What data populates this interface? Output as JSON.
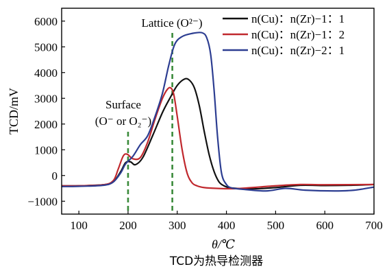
{
  "chart_data": {
    "type": "line",
    "xlabel": "θ/℃",
    "ylabel": "TCD/mV",
    "caption": "TCD为热导检测器",
    "xlim": [
      65,
      700
    ],
    "ylim": [
      -1500,
      6500
    ],
    "x_ticks": [
      "100",
      "200",
      "300",
      "400",
      "500",
      "600",
      "700"
    ],
    "y_ticks": [
      "−1000",
      "0",
      "1000",
      "2000",
      "3000",
      "4000",
      "5000",
      "6000"
    ],
    "x_tick_values": [
      100,
      200,
      300,
      400,
      500,
      600,
      700
    ],
    "y_tick_values": [
      -1000,
      0,
      1000,
      2000,
      3000,
      4000,
      5000,
      6000
    ],
    "legend_position": "top-right",
    "annotations": {
      "surface_line1": "Surface",
      "surface_line2": "(O⁻ or O₂⁻)",
      "lattice": "Lattice (O²⁻)"
    },
    "reference_lines": [
      {
        "x": 200,
        "color": "#3a8a3a",
        "style": "dashed"
      },
      {
        "x": 290,
        "color": "#3a8a3a",
        "style": "dashed"
      }
    ],
    "series": [
      {
        "name": "n(Cu)：n(Zr)−1：1",
        "color": "#111111",
        "x": [
          65,
          100,
          150,
          170,
          185,
          195,
          205,
          215,
          230,
          250,
          270,
          285,
          300,
          315,
          325,
          335,
          345,
          355,
          365,
          375,
          385,
          395,
          405,
          420,
          450,
          500,
          550,
          600,
          650,
          700
        ],
        "y": [
          -400,
          -400,
          -360,
          -250,
          150,
          500,
          530,
          420,
          700,
          1550,
          2450,
          3000,
          3500,
          3750,
          3700,
          3400,
          2700,
          1700,
          800,
          150,
          -250,
          -400,
          -470,
          -500,
          -520,
          -470,
          -380,
          -390,
          -380,
          -350
        ]
      },
      {
        "name": "n(Cu)：n(Zr)−1：2",
        "color": "#c0282d",
        "x": [
          65,
          100,
          150,
          170,
          180,
          190,
          198,
          210,
          225,
          240,
          255,
          270,
          280,
          287,
          293,
          300,
          310,
          320,
          330,
          340,
          355,
          380,
          420,
          500,
          550,
          600,
          700
        ],
        "y": [
          -400,
          -400,
          -360,
          -200,
          250,
          750,
          830,
          650,
          700,
          1300,
          2200,
          3000,
          3350,
          3400,
          3150,
          2300,
          1000,
          100,
          -280,
          -400,
          -470,
          -500,
          -510,
          -400,
          -350,
          -360,
          -350
        ]
      },
      {
        "name": "n(Cu)：n(Zr)−2：1",
        "color": "#2c3d91",
        "x": [
          65,
          100,
          150,
          170,
          185,
          195,
          210,
          225,
          240,
          255,
          270,
          283,
          295,
          310,
          330,
          350,
          360,
          368,
          375,
          382,
          390,
          400,
          410,
          430,
          480,
          520,
          560,
          620,
          660,
          700
        ],
        "y": [
          -430,
          -420,
          -380,
          -250,
          100,
          450,
          750,
          1200,
          1550,
          2300,
          3200,
          4300,
          5100,
          5400,
          5520,
          5550,
          5350,
          4700,
          3300,
          1500,
          100,
          -350,
          -480,
          -530,
          -600,
          -500,
          -570,
          -600,
          -570,
          -450
        ]
      }
    ]
  }
}
